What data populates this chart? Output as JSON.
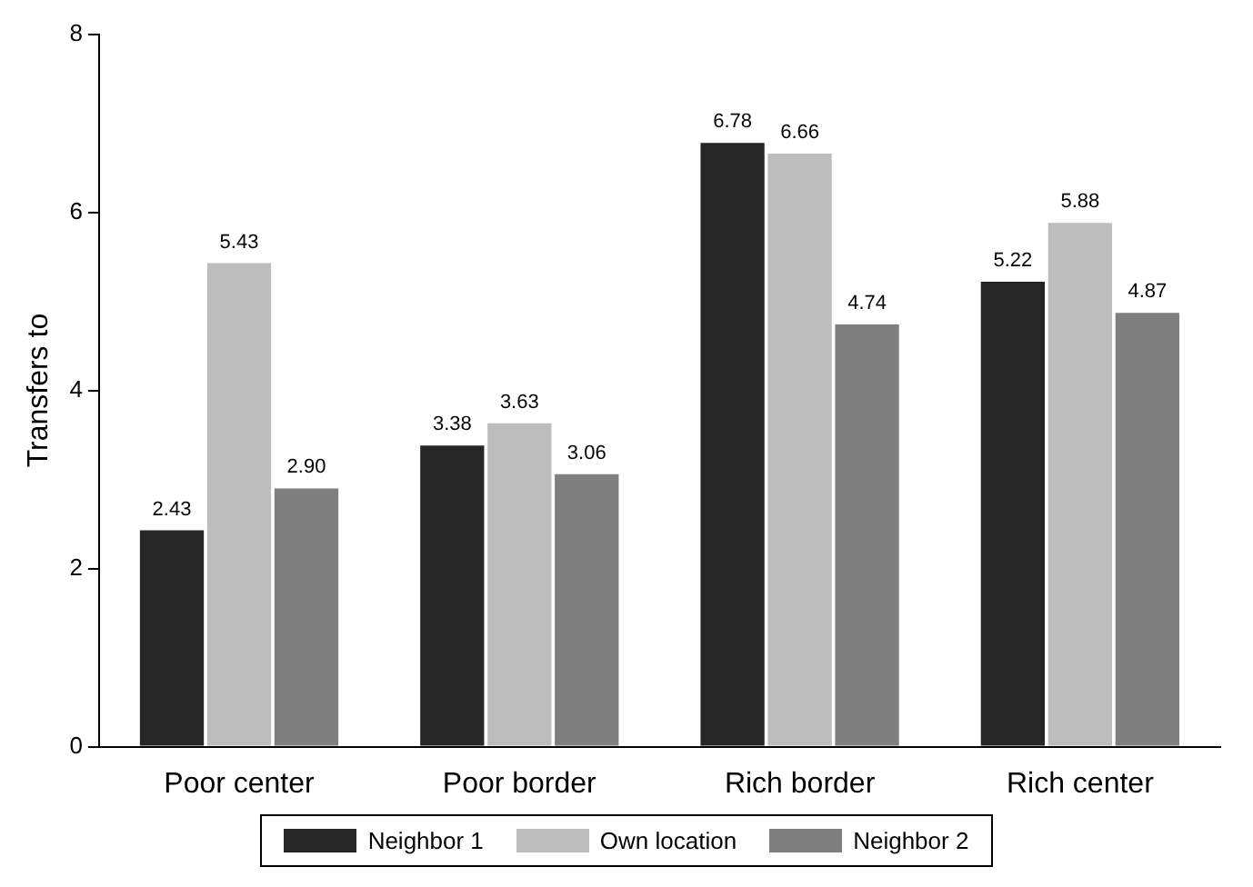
{
  "chart_data": {
    "type": "bar",
    "ylabel": "Transfers to",
    "categories": [
      "Poor center",
      "Poor border",
      "Rich border",
      "Rich center"
    ],
    "series": [
      {
        "name": "Neighbor 1",
        "color": "#262626",
        "values": [
          2.43,
          3.38,
          6.78,
          5.22
        ],
        "value_labels": [
          "2.43",
          "3.38",
          "6.78",
          "5.22"
        ]
      },
      {
        "name": "Own location",
        "color": "#bdbdbd",
        "values": [
          5.43,
          3.63,
          6.66,
          5.88
        ],
        "value_labels": [
          "5.43",
          "3.63",
          "6.66",
          "5.88"
        ]
      },
      {
        "name": "Neighbor 2",
        "color": "#7f7f7f",
        "values": [
          2.9,
          3.06,
          4.74,
          4.87
        ],
        "value_labels": [
          "2.90",
          "3.06",
          "4.74",
          "4.87"
        ]
      }
    ],
    "ylim": [
      0,
      8
    ],
    "yticks": [
      0,
      2,
      4,
      6,
      8
    ],
    "grid": false,
    "legend": "bottom"
  }
}
